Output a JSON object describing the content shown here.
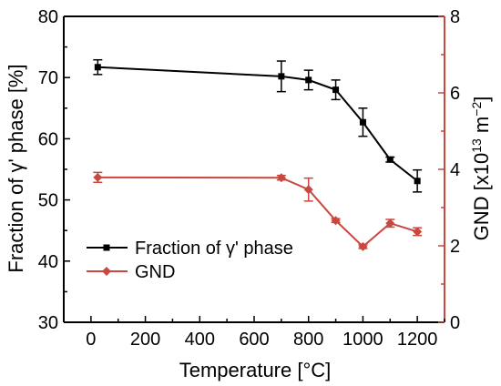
{
  "chart_data": {
    "type": "line",
    "xlabel": "Temperature [°C]",
    "ylabel_left": "Fraction of γ' phase [%]",
    "ylabel_right_parts": [
      "GND [x10",
      "13",
      " m",
      "−2",
      "]"
    ],
    "xlim": [
      -100,
      1300
    ],
    "ylim_left": [
      30,
      80
    ],
    "ylim_right": [
      0,
      8
    ],
    "x_ticks": [
      0,
      200,
      400,
      600,
      800,
      1000,
      1200
    ],
    "y_left_ticks": [
      30,
      40,
      50,
      60,
      70,
      80
    ],
    "y_right_ticks": [
      0,
      2,
      4,
      6,
      8
    ],
    "grid": false,
    "legend_position": "bottom-left",
    "series": [
      {
        "name": "Fraction of γ' phase",
        "axis": "left",
        "color": "#000000",
        "marker": "square",
        "x": [
          25,
          700,
          800,
          900,
          1000,
          1100,
          1200
        ],
        "y": [
          71.7,
          70.2,
          69.6,
          68.0,
          62.7,
          56.6,
          53.1
        ],
        "err": [
          1.2,
          2.5,
          1.6,
          1.6,
          2.3,
          0.4,
          1.8
        ]
      },
      {
        "name": "GND",
        "axis": "right",
        "color": "#c8473e",
        "marker": "diamond",
        "x": [
          25,
          700,
          800,
          900,
          1000,
          1100,
          1200
        ],
        "y": [
          3.79,
          3.78,
          3.47,
          2.66,
          1.98,
          2.59,
          2.37
        ],
        "err": [
          0.13,
          0.06,
          0.3,
          0.05,
          0.05,
          0.1,
          0.1
        ]
      }
    ]
  }
}
